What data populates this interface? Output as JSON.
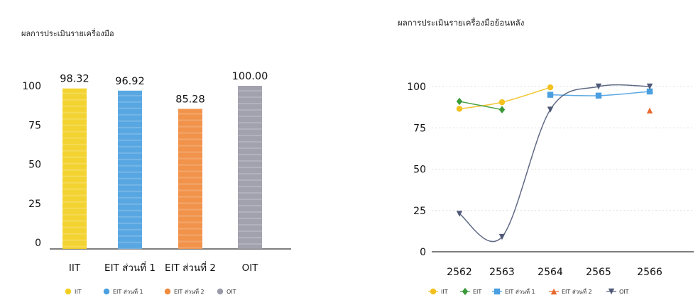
{
  "chart_data": [
    {
      "type": "bar",
      "title": "ผลการประเมินรายเครื่องมือ",
      "categories": [
        "IIT",
        "EIT ส่วนที่ 1",
        "EIT ส่วนที่ 2",
        "OIT"
      ],
      "values": [
        98.32,
        96.92,
        85.28,
        100.0
      ],
      "value_labels": [
        "98.32",
        "96.92",
        "85.28",
        "100.00"
      ],
      "bar_colors": [
        "#f2cf1f",
        "#4a9fe0",
        "#f08a3c",
        "#9a9aa8"
      ],
      "ylim": [
        0,
        100
      ],
      "yticks": [
        "0",
        "25",
        "50",
        "75",
        "100"
      ],
      "legend": [
        "IIT",
        "EIT ส่วนที่ 1",
        "EIT ส่วนที่ 2",
        "OIT"
      ],
      "legend_position": "bottom",
      "grid": false
    },
    {
      "type": "line",
      "title": "ผลการประเมินรายเครื่องมือย้อนหลัง",
      "x": [
        "2562",
        "2563",
        "2564",
        "2565",
        "2566"
      ],
      "ylim": [
        0,
        100
      ],
      "yticks": [
        "0",
        "25",
        "50",
        "75",
        "100"
      ],
      "grid": true,
      "legend_position": "bottom",
      "series": [
        {
          "name": "IIT",
          "color": "#f2c11f",
          "marker": "circle",
          "values": [
            86.5,
            90.5,
            99.5,
            null,
            null
          ]
        },
        {
          "name": "EIT",
          "color": "#3a9a3a",
          "marker": "diamond",
          "values": [
            91.0,
            86.0,
            null,
            null,
            null
          ]
        },
        {
          "name": "EIT ส่วนที่ 1",
          "color": "#4a9fe0",
          "marker": "square",
          "values": [
            null,
            null,
            95.0,
            94.5,
            97.0
          ]
        },
        {
          "name": "EIT ส่วนที่ 2",
          "color": "#e8692f",
          "marker": "triangle",
          "values": [
            null,
            null,
            null,
            null,
            85.5
          ]
        },
        {
          "name": "OIT",
          "color": "#505a78",
          "marker": "triangle-down",
          "values": [
            23.0,
            9.0,
            86.0,
            100.0,
            100.0
          ]
        }
      ]
    }
  ]
}
